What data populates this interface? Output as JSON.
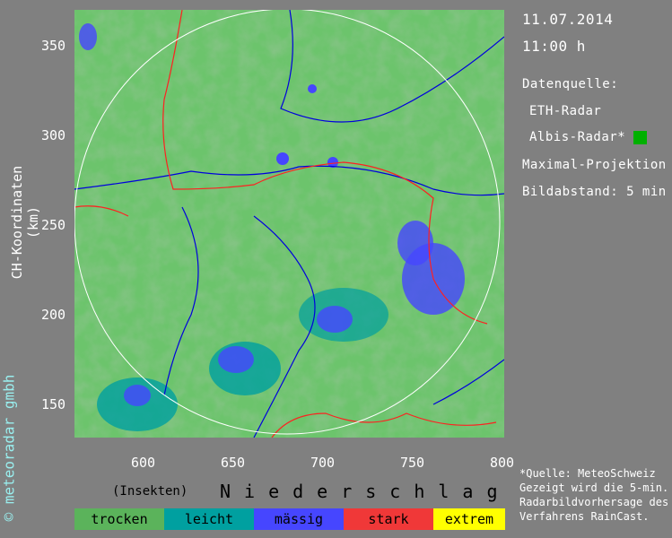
{
  "info": {
    "date": "11.07.2014",
    "time": "11:00 h",
    "source_label": "Datenquelle:",
    "source1": "ETH-Radar",
    "source2": "Albis-Radar*",
    "source2_color": "#00b000",
    "projection": "Maximal-Projektion",
    "interval": "Bildabstand: 5 min"
  },
  "axes": {
    "ylabel": "CH-Koordinaten (km)",
    "x_ticks": [
      "600",
      "650",
      "700",
      "750",
      "800"
    ],
    "y_ticks": [
      "350",
      "300",
      "250",
      "200",
      "150"
    ],
    "x_range": [
      560,
      800
    ],
    "y_range": [
      132,
      370
    ]
  },
  "copyright": "© meteoradar gmbh",
  "legend": {
    "prefix": "(Insekten)",
    "title": "Niederschlag",
    "items": [
      {
        "label": "trocken",
        "color": "#5bb35b"
      },
      {
        "label": "leicht",
        "color": "#00a0a0"
      },
      {
        "label": "mässig",
        "color": "#4646ff"
      },
      {
        "label": "stark",
        "color": "#f03838"
      },
      {
        "label": "extrem",
        "color": "#ffff00"
      }
    ]
  },
  "note": [
    "*Quelle: MeteoSchweiz",
    "Gezeigt wird die 5-min.",
    "Radarbildvorhersage des",
    "Verfahrens RainCast."
  ]
}
